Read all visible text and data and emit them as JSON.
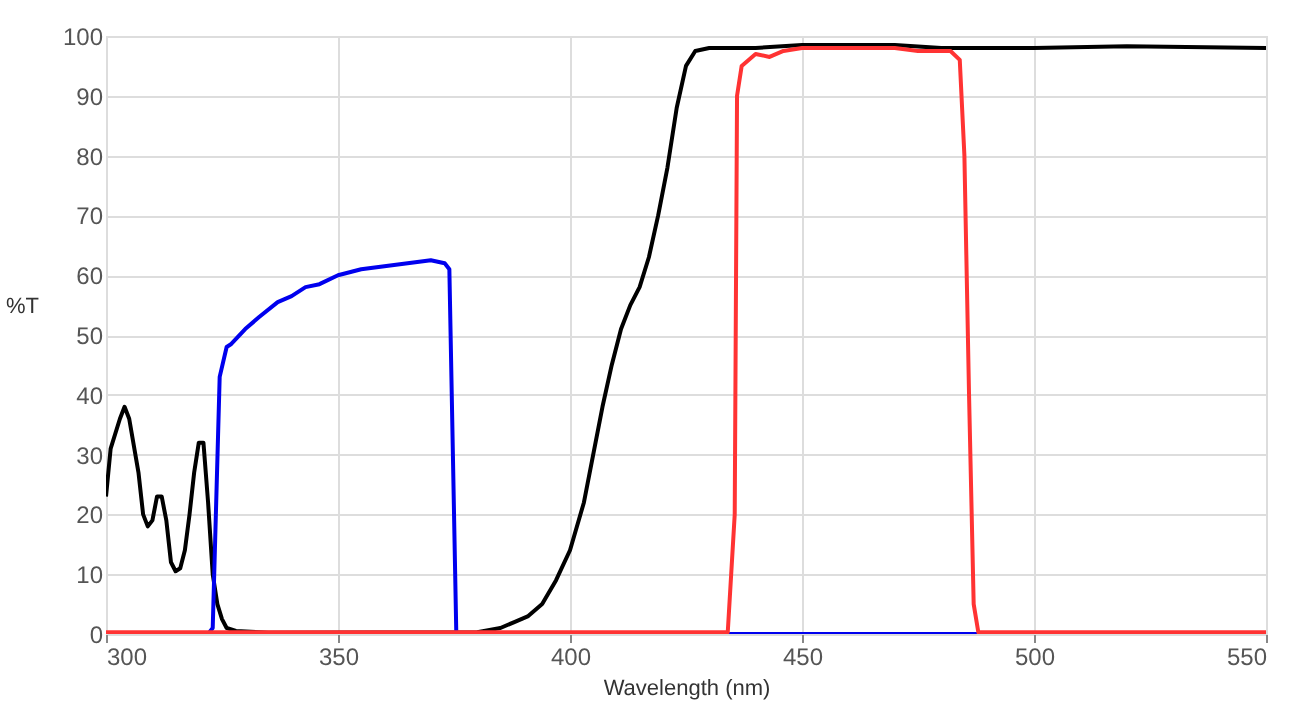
{
  "chart_data": {
    "type": "line",
    "xlabel": "Wavelength (nm)",
    "ylabel": "%T",
    "xlim": [
      300,
      550
    ],
    "xticks": [
      300,
      350,
      400,
      450,
      500,
      550
    ],
    "ylim": [
      0,
      100
    ],
    "yticks": [
      0,
      10,
      20,
      30,
      40,
      50,
      60,
      70,
      80,
      90,
      100
    ],
    "grid": true,
    "marker": "none",
    "line_style": "solid",
    "series": [
      {
        "color": "#000000",
        "x": [
          300,
          301,
          303,
          304,
          305,
          307,
          308,
          309,
          310,
          311,
          312,
          313,
          314,
          315,
          316,
          317,
          318,
          319,
          320,
          321,
          322,
          323,
          324,
          325,
          326,
          328,
          335,
          380,
          385,
          388,
          391,
          394,
          397,
          400,
          403,
          405,
          407,
          409,
          411,
          413,
          415,
          417,
          419,
          421,
          423,
          425,
          427,
          430,
          440,
          450,
          470,
          480,
          500,
          520,
          550
        ],
        "values": [
          23,
          31,
          36,
          38,
          36,
          27,
          20,
          18,
          19,
          23,
          23,
          19,
          12,
          10.5,
          11,
          14,
          20,
          27,
          32,
          32,
          22,
          10,
          5,
          2.5,
          1,
          0.5,
          0.2,
          0.3,
          1,
          2,
          3,
          5,
          9,
          14,
          22,
          30,
          38,
          45,
          51,
          55,
          58,
          63,
          70,
          78,
          88,
          95,
          97.5,
          98,
          98,
          98.5,
          98.5,
          98,
          98,
          98.3,
          98
        ]
      },
      {
        "color": "#0000ee",
        "x": [
          300,
          322,
          323,
          324.5,
          326,
          327,
          330,
          333,
          337,
          340,
          343,
          346,
          350,
          355,
          360,
          365,
          370,
          373,
          374,
          375.5,
          550
        ],
        "values": [
          0,
          0,
          1,
          43,
          48,
          48.5,
          51,
          53,
          55.5,
          56.5,
          58,
          58.5,
          60,
          61,
          61.5,
          62,
          62.5,
          62,
          61,
          0,
          0
        ]
      },
      {
        "color": "#ff3333",
        "x": [
          300,
          434,
          435.5,
          436,
          437,
          440,
          443,
          446,
          450,
          460,
          470,
          475,
          482,
          484,
          485,
          486,
          487,
          488,
          550
        ],
        "values": [
          0.3,
          0.3,
          20,
          90,
          95,
          97,
          96.5,
          97.5,
          98,
          98,
          98,
          97.5,
          97.5,
          96,
          80,
          40,
          5,
          0.3,
          0.3
        ]
      }
    ]
  }
}
